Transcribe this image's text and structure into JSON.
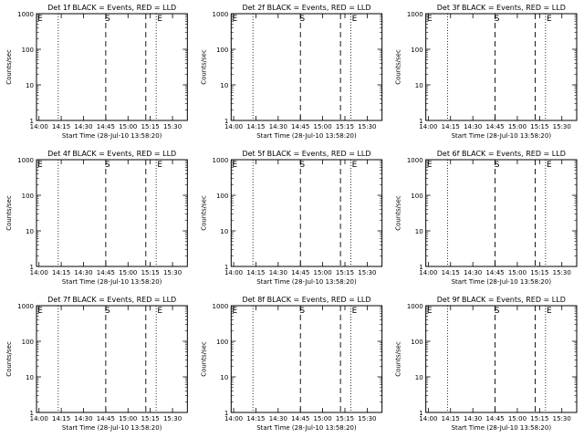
{
  "chart_data": [
    {
      "type": "line",
      "title": "Det 1f BLACK = Events, RED = LLD",
      "xlabel": "Start Time (28-Jul-10 13:58:20)",
      "ylabel": "Counts/sec",
      "yscale": "log",
      "ylim": [
        1,
        1000
      ],
      "xlim": [
        "13:58:20",
        "15:40:00"
      ],
      "x_ticks": [
        "14:00",
        "14:15",
        "14:30",
        "14:45",
        "15:00",
        "15:15",
        "15:30"
      ],
      "y_ticks": [
        "1",
        "10",
        "100",
        "1000"
      ],
      "markers": [
        "E",
        "S",
        "E"
      ],
      "series": [
        {
          "name": "LLD",
          "color": "#ff0000"
        },
        {
          "name": "Events",
          "color": "#000000"
        }
      ]
    },
    {
      "type": "line",
      "title": "Det 2f BLACK = Events, RED = LLD",
      "xlabel": "Start Time (28-Jul-10 13:58:20)",
      "ylabel": "Counts/sec",
      "yscale": "log",
      "ylim": [
        1,
        1000
      ],
      "xlim": [
        "13:58:20",
        "15:40:00"
      ],
      "x_ticks": [
        "14:00",
        "14:15",
        "14:30",
        "14:45",
        "15:00",
        "15:15",
        "15:30"
      ],
      "y_ticks": [
        "1",
        "10",
        "100",
        "1000"
      ],
      "markers": [
        "E",
        "S",
        "E"
      ],
      "series": [
        {
          "name": "LLD",
          "color": "#ff0000"
        },
        {
          "name": "Events",
          "color": "#000000"
        }
      ]
    },
    {
      "type": "line",
      "title": "Det 3f BLACK = Events, RED = LLD",
      "xlabel": "Start Time (28-Jul-10 13:58:20)",
      "ylabel": "Counts/sec",
      "yscale": "log",
      "ylim": [
        1,
        1000
      ],
      "xlim": [
        "13:58:20",
        "15:40:00"
      ],
      "x_ticks": [
        "14:00",
        "14:15",
        "14:30",
        "14:45",
        "15:00",
        "15:15",
        "15:30"
      ],
      "y_ticks": [
        "1",
        "10",
        "100",
        "1000"
      ],
      "markers": [
        "E",
        "S",
        "E"
      ],
      "series": [
        {
          "name": "LLD",
          "color": "#ff0000"
        },
        {
          "name": "Events",
          "color": "#000000"
        }
      ]
    },
    {
      "type": "line",
      "title": "Det 4f BLACK = Events, RED = LLD",
      "xlabel": "Start Time (28-Jul-10 13:58:20)",
      "ylabel": "Counts/sec",
      "yscale": "log",
      "ylim": [
        1,
        1000
      ],
      "xlim": [
        "13:58:20",
        "15:40:00"
      ],
      "x_ticks": [
        "14:00",
        "14:15",
        "14:30",
        "14:45",
        "15:00",
        "15:15",
        "15:30"
      ],
      "y_ticks": [
        "1",
        "10",
        "100",
        "1000"
      ],
      "markers": [
        "E",
        "S",
        "E"
      ],
      "series": [
        {
          "name": "LLD",
          "color": "#ff0000"
        },
        {
          "name": "Events",
          "color": "#000000"
        }
      ]
    },
    {
      "type": "line",
      "title": "Det 5f BLACK = Events, RED = LLD",
      "xlabel": "Start Time (28-Jul-10 13:58:20)",
      "ylabel": "Counts/sec",
      "yscale": "log",
      "ylim": [
        1,
        1000
      ],
      "xlim": [
        "13:58:20",
        "15:40:00"
      ],
      "x_ticks": [
        "14:00",
        "14:15",
        "14:30",
        "14:45",
        "15:00",
        "15:15",
        "15:30"
      ],
      "y_ticks": [
        "1",
        "10",
        "100",
        "1000"
      ],
      "markers": [
        "E",
        "S",
        "E"
      ],
      "series": [
        {
          "name": "LLD",
          "color": "#ff0000"
        },
        {
          "name": "Events",
          "color": "#000000"
        }
      ]
    },
    {
      "type": "line",
      "title": "Det 6f BLACK = Events, RED = LLD",
      "xlabel": "Start Time (28-Jul-10 13:58:20)",
      "ylabel": "Counts/sec",
      "yscale": "log",
      "ylim": [
        1,
        1000
      ],
      "xlim": [
        "13:58:20",
        "15:40:00"
      ],
      "x_ticks": [
        "14:00",
        "14:15",
        "14:30",
        "14:45",
        "15:00",
        "15:15",
        "15:30"
      ],
      "y_ticks": [
        "1",
        "10",
        "100",
        "1000"
      ],
      "markers": [
        "E",
        "S",
        "E"
      ],
      "series": [
        {
          "name": "LLD",
          "color": "#ff0000"
        },
        {
          "name": "Events",
          "color": "#000000"
        }
      ]
    },
    {
      "type": "line",
      "title": "Det 7f BLACK = Events, RED = LLD",
      "xlabel": "Start Time (28-Jul-10 13:58:20)",
      "ylabel": "Counts/sec",
      "yscale": "log",
      "ylim": [
        1,
        1000
      ],
      "xlim": [
        "13:58:20",
        "15:40:00"
      ],
      "x_ticks": [
        "14:00",
        "14:15",
        "14:30",
        "14:45",
        "15:00",
        "15:15",
        "15:30"
      ],
      "y_ticks": [
        "1",
        "10",
        "100",
        "1000"
      ],
      "markers": [
        "E",
        "S",
        "E"
      ],
      "series": [
        {
          "name": "LLD",
          "color": "#ff0000"
        },
        {
          "name": "Events",
          "color": "#000000"
        }
      ]
    },
    {
      "type": "line",
      "title": "Det 8f BLACK = Events, RED = LLD",
      "xlabel": "Start Time (28-Jul-10 13:58:20)",
      "ylabel": "Counts/sec",
      "yscale": "log",
      "ylim": [
        1,
        1000
      ],
      "xlim": [
        "13:58:20",
        "15:40:00"
      ],
      "x_ticks": [
        "14:00",
        "14:15",
        "14:30",
        "14:45",
        "15:00",
        "15:15",
        "15:30"
      ],
      "y_ticks": [
        "1",
        "10",
        "100",
        "1000"
      ],
      "markers": [
        "E",
        "S",
        "E"
      ],
      "series": [
        {
          "name": "LLD",
          "color": "#ff0000"
        },
        {
          "name": "Events",
          "color": "#000000"
        }
      ]
    },
    {
      "type": "line",
      "title": "Det 9f BLACK = Events, RED = LLD",
      "xlabel": "Start Time (28-Jul-10 13:58:20)",
      "ylabel": "Counts/sec",
      "yscale": "log",
      "ylim": [
        1,
        1000
      ],
      "xlim": [
        "13:58:20",
        "15:40:00"
      ],
      "x_ticks": [
        "14:00",
        "14:15",
        "14:30",
        "14:45",
        "15:00",
        "15:15",
        "15:30"
      ],
      "y_ticks": [
        "1",
        "10",
        "100",
        "1000"
      ],
      "markers": [
        "E",
        "S",
        "E"
      ],
      "series": [
        {
          "name": "LLD",
          "color": "#ff0000"
        },
        {
          "name": "Events",
          "color": "#000000"
        }
      ]
    }
  ]
}
